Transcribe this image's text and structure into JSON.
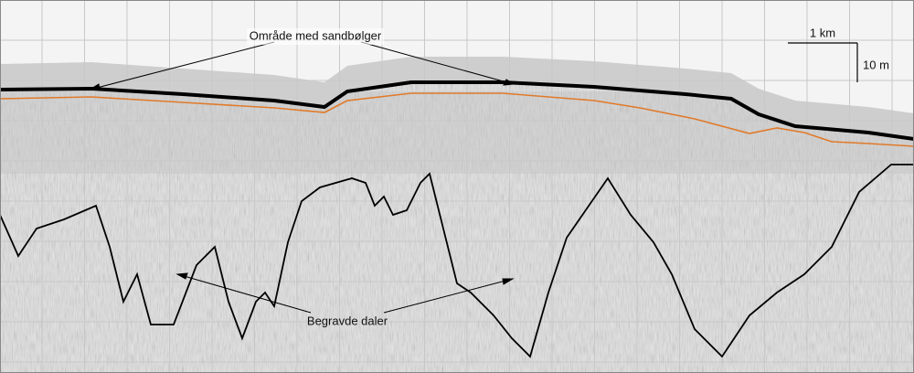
{
  "annotations": [
    {
      "label": "Område med sandbølger"
    },
    {
      "label": "Begravde daler"
    }
  ],
  "scale_bar": {
    "horizontal": "1 km",
    "vertical": "10 m"
  }
}
